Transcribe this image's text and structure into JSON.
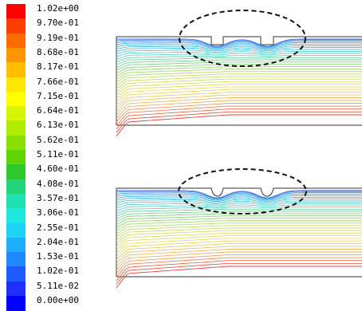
{
  "legend": {
    "labels": [
      "1.02e+00",
      "9.70e-01",
      "9.19e-01",
      "8.68e-01",
      "8.17e-01",
      "7.66e-01",
      "7.15e-01",
      "6.64e-01",
      "6.13e-01",
      "5.62e-01",
      "5.11e-01",
      "4.60e-01",
      "4.08e-01",
      "3.57e-01",
      "3.06e-01",
      "2.55e-01",
      "2.04e-01",
      "1.53e-01",
      "1.02e-01",
      "5.11e-02",
      "0.00e+00"
    ],
    "colors": [
      "#ff0000",
      "#ff3c00",
      "#ff6a00",
      "#ff9500",
      "#ffbe00",
      "#ffe600",
      "#ffff00",
      "#d6f500",
      "#b0ec00",
      "#87e000",
      "#5fd400",
      "#2fc82f",
      "#22d47a",
      "#1ee0b0",
      "#1ee8e0",
      "#1ed4f5",
      "#1eb0ff",
      "#1e8aff",
      "#1e5cff",
      "#1e2eff",
      "#0000ff"
    ]
  },
  "panels": [
    {
      "name": "top-panel",
      "surface": "rectangular-grooves"
    },
    {
      "name": "bottom-panel",
      "surface": "rounded-grooves"
    }
  ]
}
